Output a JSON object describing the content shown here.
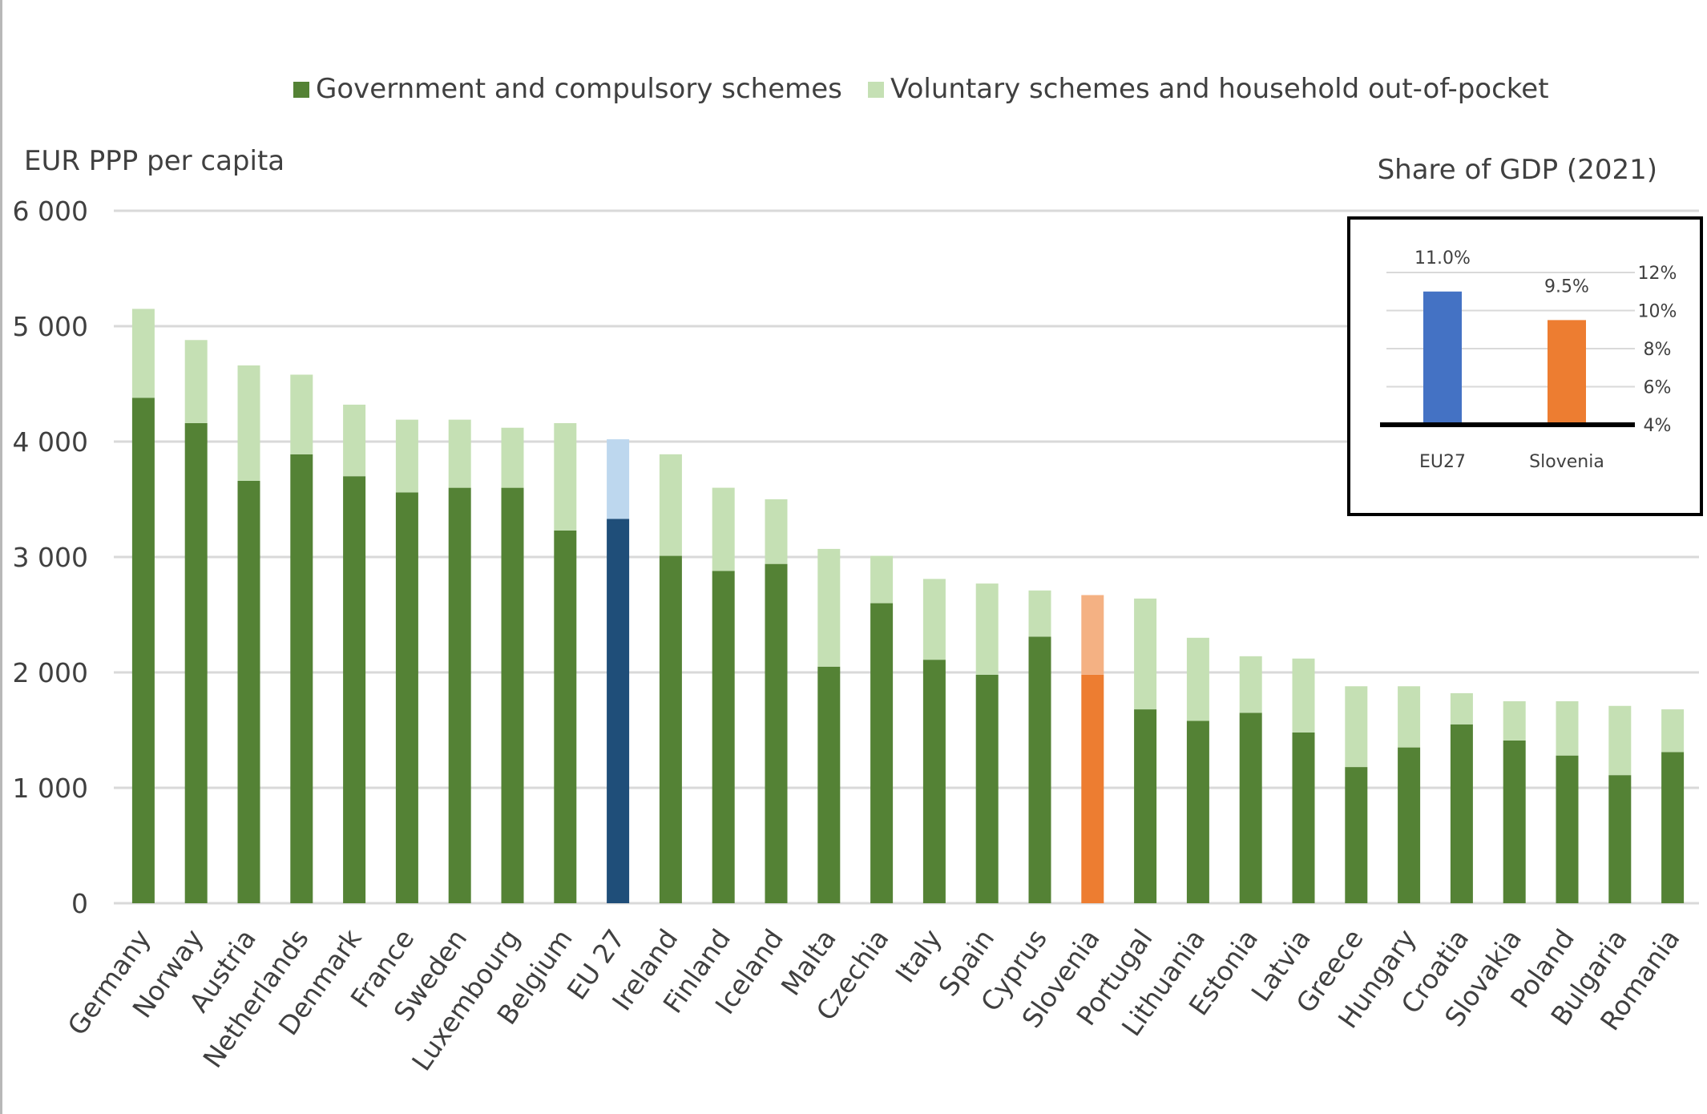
{
  "chart_data": [
    {
      "type": "bar",
      "stacked": true,
      "ylabel": "EUR PPP per capita",
      "ylim": [
        0,
        6000
      ],
      "yticks": [
        0,
        1000,
        2000,
        3000,
        4000,
        5000,
        6000
      ],
      "ytick_labels": [
        "0",
        "1 000",
        "2 000",
        "3 000",
        "4 000",
        "5 000",
        "6 000"
      ],
      "grid": true,
      "legend_position": "top-center",
      "categories": [
        "Germany",
        "Norway",
        "Austria",
        "Netherlands",
        "Denmark",
        "France",
        "Sweden",
        "Luxembourg",
        "Belgium",
        "EU 27",
        "Ireland",
        "Finland",
        "Iceland",
        "Malta",
        "Czechia",
        "Italy",
        "Spain",
        "Cyprus",
        "Slovenia",
        "Portugal",
        "Lithuania",
        "Estonia",
        "Latvia",
        "Greece",
        "Hungary",
        "Croatia",
        "Slovakia",
        "Poland",
        "Bulgaria",
        "Romania"
      ],
      "series": [
        {
          "name": "Government and compulsory schemes",
          "color": "#548235",
          "values": [
            4380,
            4160,
            3660,
            3890,
            3700,
            3560,
            3600,
            3600,
            3230,
            3330,
            3010,
            2880,
            2940,
            2050,
            2600,
            2110,
            1980,
            2310,
            1980,
            1680,
            1580,
            1650,
            1480,
            1180,
            1350,
            1550,
            1410,
            1280,
            1110,
            1310
          ]
        },
        {
          "name": "Voluntary schemes and household out-of-pocket",
          "color": "#c5e0b4",
          "values": [
            770,
            720,
            1000,
            690,
            620,
            630,
            590,
            520,
            930,
            690,
            880,
            720,
            560,
            1020,
            410,
            700,
            790,
            400,
            690,
            960,
            720,
            490,
            640,
            700,
            530,
            270,
            340,
            470,
            600,
            370
          ]
        }
      ],
      "highlights": {
        "EU 27": {
          "base_color": "#1f4e79",
          "top_color": "#bdd7ee"
        },
        "Slovenia": {
          "base_color": "#ed7d31",
          "top_color": "#f4b183"
        }
      }
    },
    {
      "type": "bar",
      "title": "Share of GDP (2021)",
      "categories": [
        "EU27",
        "Slovenia"
      ],
      "values": [
        11.0,
        9.5
      ],
      "value_labels": [
        "11.0%",
        "9.5%"
      ],
      "colors": [
        "#4472c4",
        "#ed7d31"
      ],
      "ylim": [
        4,
        12
      ],
      "yticks": [
        4,
        6,
        8,
        10,
        12
      ],
      "ytick_labels": [
        "4%",
        "6%",
        "8%",
        "10%",
        "12%"
      ],
      "grid": true
    }
  ]
}
